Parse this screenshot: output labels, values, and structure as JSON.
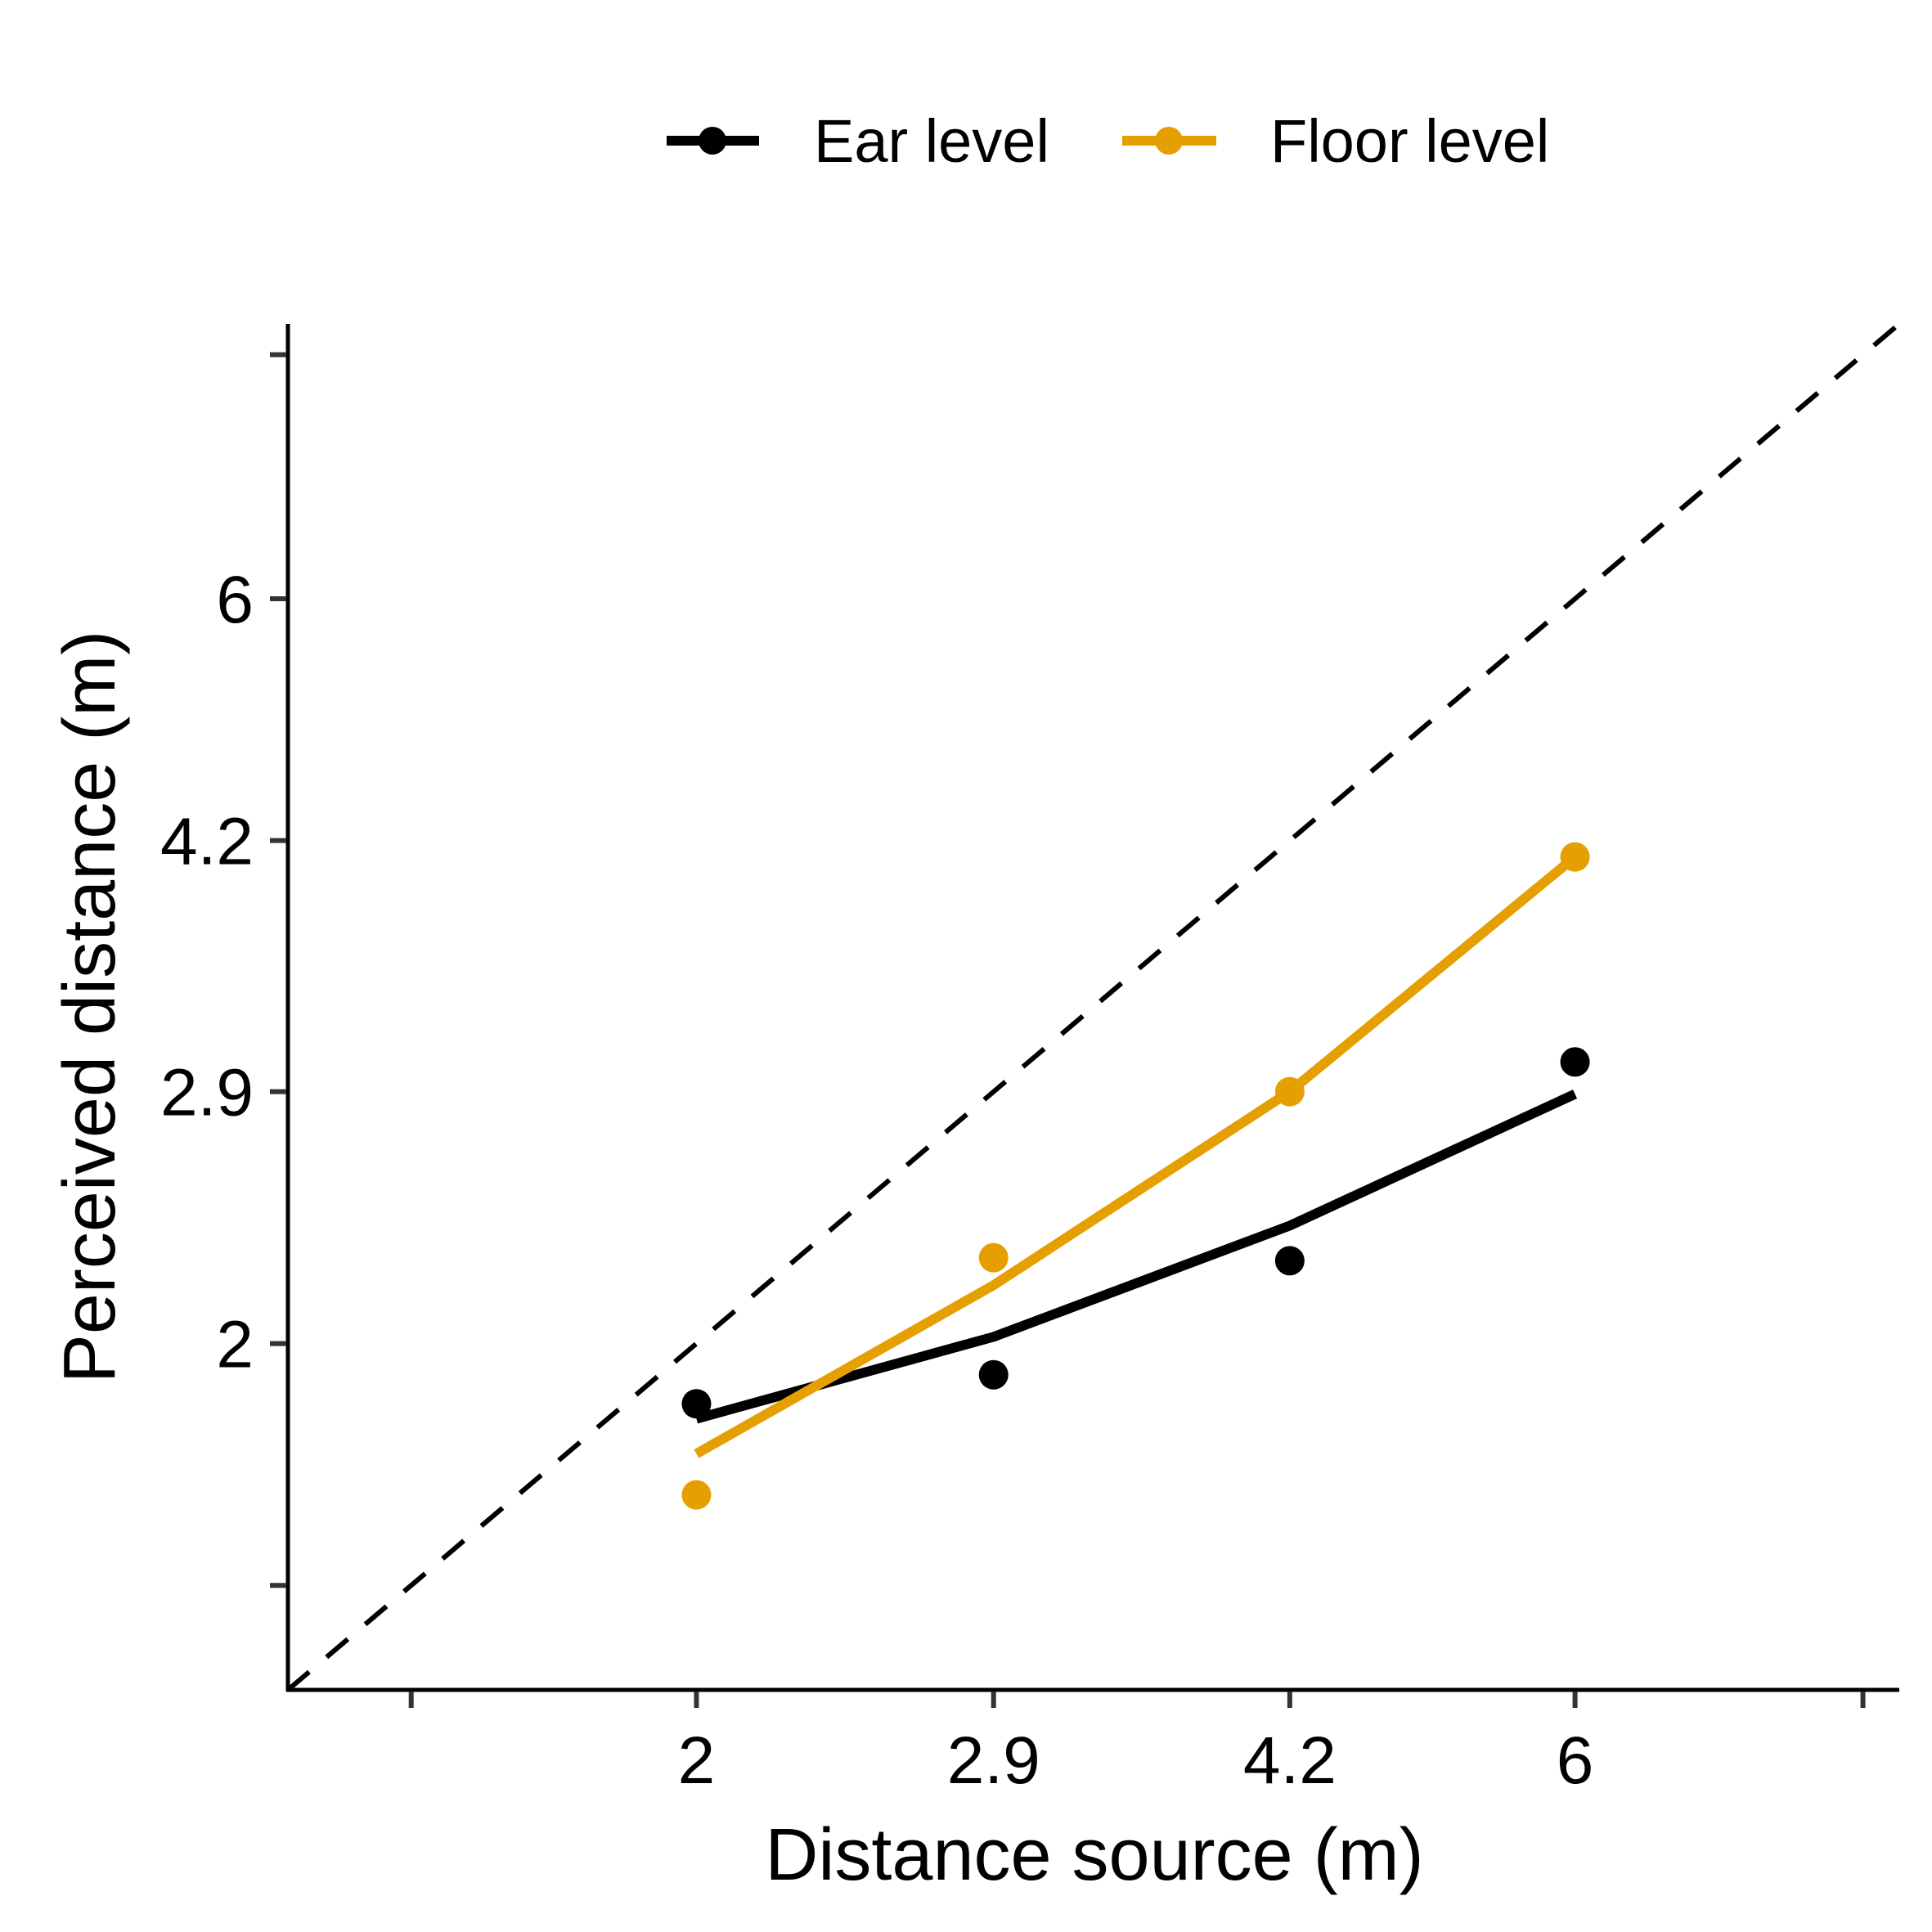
{
  "chart_data": {
    "type": "scatter",
    "title": "",
    "xlabel": "Distance source (m)",
    "ylabel": "Perceived distance (m)",
    "x_scale": "log",
    "y_scale": "log",
    "xlim": [
      1.2,
      9.0
    ],
    "ylim": [
      1.2,
      9.0
    ],
    "x_ticks": [
      1.4,
      2,
      2.9,
      4.2,
      6,
      8.6
    ],
    "x_tick_labels": [
      "",
      "2",
      "2.9",
      "4.2",
      "6",
      ""
    ],
    "y_ticks": [
      1.4,
      2,
      2.9,
      4.2,
      6,
      8.6
    ],
    "y_tick_labels": [
      "",
      "2",
      "2.9",
      "4.2",
      "6",
      ""
    ],
    "grid": false,
    "legend_position": "top",
    "reference_line": "y = x (dashed)",
    "series": [
      {
        "name": "Ear level",
        "color": "#000000",
        "x": [
          2,
          2.9,
          4.2,
          6
        ],
        "points_y": [
          1.83,
          1.91,
          2.26,
          3.03
        ],
        "fit_y": [
          1.79,
          2.02,
          2.38,
          2.89
        ]
      },
      {
        "name": "Floor level",
        "color": "#E69F00",
        "x": [
          2,
          2.9,
          4.2,
          6
        ],
        "points_y": [
          1.6,
          2.27,
          2.9,
          4.1
        ],
        "fit_y": [
          1.7,
          2.18,
          2.9,
          4.1
        ]
      }
    ]
  }
}
